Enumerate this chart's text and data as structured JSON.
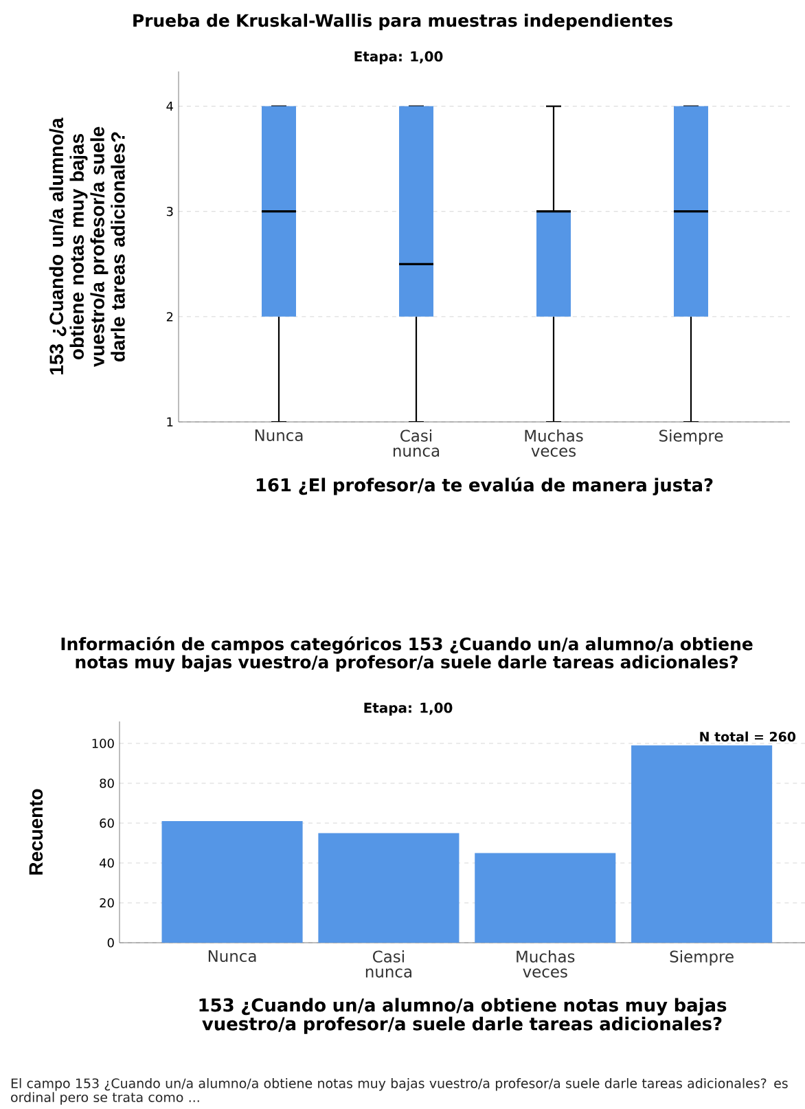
{
  "chart_data": [
    {
      "type": "box",
      "title": "Prueba de Kruskal-Wallis para muestras independientes",
      "subtitle": "Etapa: 1,00",
      "xlabel": "161 ¿El profesor/a te evalúa de manera justa?",
      "ylabel": "153 ¿Cuando un/a alumno/a obtiene notas muy bajas vuestro/a profesor/a suele darle tareas adicionales?",
      "categories": [
        "Nunca",
        "Casi nunca",
        "Muchas veces",
        "Siempre"
      ],
      "color": "#5596e6",
      "ylim": [
        1,
        4.33
      ],
      "yticks": [
        1,
        2,
        3,
        4
      ],
      "grid": "y",
      "boxes": [
        {
          "low": 1,
          "q1": 2,
          "median": 3,
          "q3": 4,
          "high": 4
        },
        {
          "low": 1,
          "q1": 2,
          "median": 2.5,
          "q3": 4,
          "high": 4
        },
        {
          "low": 1,
          "q1": 2,
          "median": 3,
          "q3": 3,
          "high": 4
        },
        {
          "low": 1,
          "q1": 2,
          "median": 3,
          "q3": 4,
          "high": 4
        }
      ]
    },
    {
      "type": "bar",
      "title": "Información de campos categóricos 153 ¿Cuando un/a alumno/a obtiene notas muy bajas vuestro/a profesor/a suele darle tareas adicionales?",
      "subtitle": "Etapa: 1,00",
      "xlabel": "153 ¿Cuando un/a alumno/a obtiene notas muy bajas vuestro/a profesor/a suele darle tareas adicionales?",
      "ylabel": "Recuento",
      "categories": [
        "Nunca",
        "Casi nunca",
        "Muchas veces",
        "Siempre"
      ],
      "values": [
        61,
        55,
        45,
        99
      ],
      "color": "#5596e6",
      "ylim": [
        0,
        111
      ],
      "yticks": [
        0,
        20,
        40,
        60,
        80,
        100
      ],
      "grid": "y",
      "annotations": [
        "N total = 260",
        "El campo 153 ¿Cuando un/a alumno/a obtiene notas muy bajas vuestro/a profesor/a suele darle tareas adicionales? es ordinal pero se trata como ..."
      ]
    }
  ]
}
